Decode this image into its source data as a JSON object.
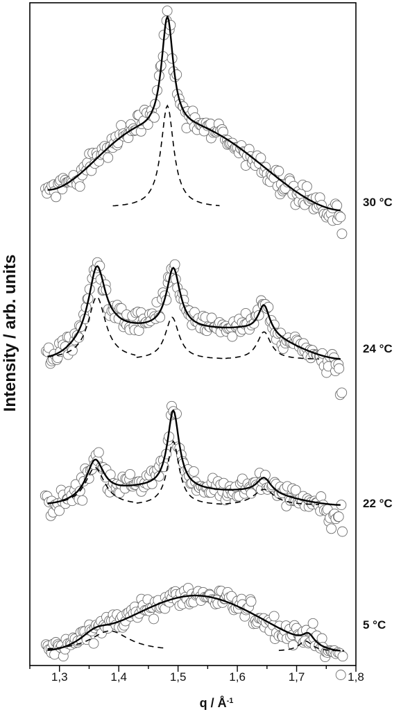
{
  "chart_data": {
    "type": "scatter",
    "title": "",
    "xlabel": "q / Å⁻¹",
    "ylabel": "Intensity / arb. units",
    "xlim": [
      1.25,
      1.8
    ],
    "x_ticks": [
      "1,3",
      "1,4",
      "1,5",
      "1,6",
      "1,7",
      "1,8"
    ],
    "x_tick_values": [
      1.3,
      1.4,
      1.5,
      1.6,
      1.7,
      1.8
    ],
    "y_ticks": [],
    "ylim": [
      0,
      22
    ],
    "grid": false,
    "legend": "none",
    "marker": "open circles",
    "fit_style": "solid black line",
    "component_style": "dashed black line",
    "series": [
      {
        "name": "5 °C",
        "offset": 0.2,
        "background": [
          [
            1.28,
            0.0
          ],
          [
            1.53,
            1.9
          ],
          [
            1.78,
            0.0
          ]
        ],
        "fit_peaks": [
          {
            "center": 1.36,
            "height": 0.35,
            "width": 0.03
          },
          {
            "center": 1.72,
            "height": 0.35,
            "width": 0.012
          }
        ],
        "components": [
          {
            "center": 1.385,
            "height": 0.7,
            "width": 0.04,
            "range": [
              1.28,
              1.48
            ],
            "base": 0.0
          },
          {
            "center": 1.715,
            "height": 0.35,
            "width": 0.014,
            "range": [
              1.67,
              1.78
            ],
            "base": 0.0
          }
        ],
        "noise": 0.35,
        "drop": {
          "x": 1.77,
          "amount": 0.5
        }
      },
      {
        "name": "22 °C",
        "offset": 5.2,
        "background": [
          [
            1.28,
            0.0
          ],
          [
            1.45,
            0.55
          ],
          [
            1.6,
            0.45
          ],
          [
            1.78,
            0.0
          ]
        ],
        "fit_peaks": [
          {
            "center": 1.36,
            "height": 1.3,
            "width": 0.018
          },
          {
            "center": 1.492,
            "height": 2.7,
            "width": 0.012
          },
          {
            "center": 1.645,
            "height": 0.55,
            "width": 0.015
          }
        ],
        "components": [
          {
            "center": 1.36,
            "height": 1.3,
            "width": 0.02,
            "range": [
              1.29,
              1.43
            ],
            "base": 0.0
          },
          {
            "center": 1.492,
            "height": 2.2,
            "width": 0.012,
            "range": [
              1.43,
              1.58
            ],
            "base": 0.0
          },
          {
            "center": 1.645,
            "height": 0.55,
            "width": 0.022,
            "range": [
              1.58,
              1.74
            ],
            "base": 0.0
          }
        ],
        "noise": 0.35,
        "drop": {
          "x": 1.77,
          "amount": 0.8
        }
      },
      {
        "name": "24 °C",
        "offset": 10.2,
        "background": [
          [
            1.28,
            0.0
          ],
          [
            1.4,
            1.0
          ],
          [
            1.6,
            1.0
          ],
          [
            1.78,
            0.0
          ]
        ],
        "fit_peaks": [
          {
            "center": 1.363,
            "height": 2.4,
            "width": 0.017
          },
          {
            "center": 1.492,
            "height": 2.1,
            "width": 0.014
          },
          {
            "center": 1.645,
            "height": 1.0,
            "width": 0.012
          }
        ],
        "components": [
          {
            "center": 1.363,
            "height": 2.15,
            "width": 0.018,
            "range": [
              1.28,
              1.43
            ],
            "base": 0.0
          },
          {
            "center": 1.49,
            "height": 1.45,
            "width": 0.014,
            "range": [
              1.43,
              1.58
            ],
            "base": 0.0
          },
          {
            "center": 1.645,
            "height": 0.95,
            "width": 0.014,
            "range": [
              1.58,
              1.74
            ],
            "base": 0.0
          }
        ],
        "noise": 0.35,
        "drop": {
          "x": 1.77,
          "amount": 1.0
        }
      },
      {
        "name": "30 °C",
        "offset": 16.0,
        "background": [
          [
            1.28,
            0.0
          ],
          [
            1.44,
            2.0
          ],
          [
            1.52,
            2.1
          ],
          [
            1.78,
            -0.7
          ]
        ],
        "fit_peaks": [
          {
            "center": 1.482,
            "height": 3.9,
            "width": 0.012
          }
        ],
        "components": [
          {
            "center": 1.482,
            "height": 3.5,
            "width": 0.013,
            "range": [
              1.39,
              1.57
            ],
            "base": -0.6
          }
        ],
        "noise": 0.35,
        "drop": {
          "x": 1.77,
          "amount": 0.3
        }
      }
    ]
  }
}
